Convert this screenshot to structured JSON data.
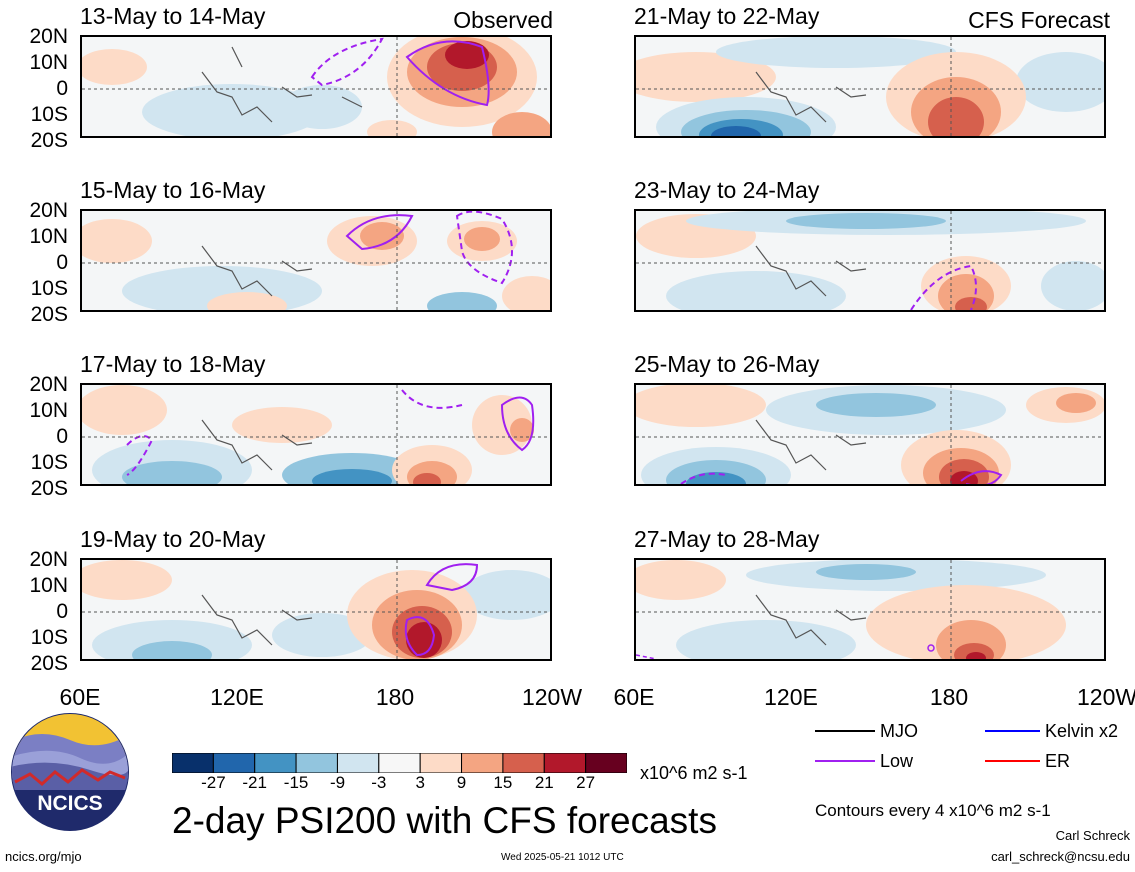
{
  "panels": [
    {
      "title": "13-May to 14-May",
      "tag": "Observed"
    },
    {
      "title": "21-May to 22-May",
      "tag": "CFS Forecast"
    },
    {
      "title": "15-May to 16-May",
      "tag": ""
    },
    {
      "title": "23-May to 24-May",
      "tag": ""
    },
    {
      "title": "17-May to 18-May",
      "tag": ""
    },
    {
      "title": "25-May to 26-May",
      "tag": ""
    },
    {
      "title": "19-May to 20-May",
      "tag": ""
    },
    {
      "title": "27-May to 28-May",
      "tag": ""
    }
  ],
  "lat_labels": [
    "20N",
    "10N",
    "0",
    "10S",
    "20S"
  ],
  "lon_labels": [
    "60E",
    "120E",
    "180",
    "120W"
  ],
  "colorbar": {
    "colors": [
      "#08306b",
      "#2166ac",
      "#4393c3",
      "#92c5de",
      "#d1e5f0",
      "#f7f7f7",
      "#fddbc7",
      "#f4a582",
      "#d6604d",
      "#b2182b",
      "#67001f"
    ],
    "labels": [
      "-27",
      "-21",
      "-15",
      "-9",
      "-3",
      "3",
      "9",
      "15",
      "21",
      "27"
    ],
    "units": "x10^6 m2 s-1"
  },
  "legend": [
    {
      "label": "MJO",
      "color": "#000000"
    },
    {
      "label": "Kelvin x2",
      "color": "#0000ff"
    },
    {
      "label": "Low",
      "color": "#a020f0"
    },
    {
      "label": "ER",
      "color": "#ff0000"
    }
  ],
  "main_title": "2-day PSI200 with CFS forecasts",
  "contour_note": "Contours every 4 x10^6 m2 s-1",
  "author": "Carl Schreck",
  "email": "carl_schreck@ncsu.edu",
  "site": "ncics.org/mjo",
  "timestamp": "Wed 2025-05-21 1012 UTC",
  "logo_text": "NCICS"
}
